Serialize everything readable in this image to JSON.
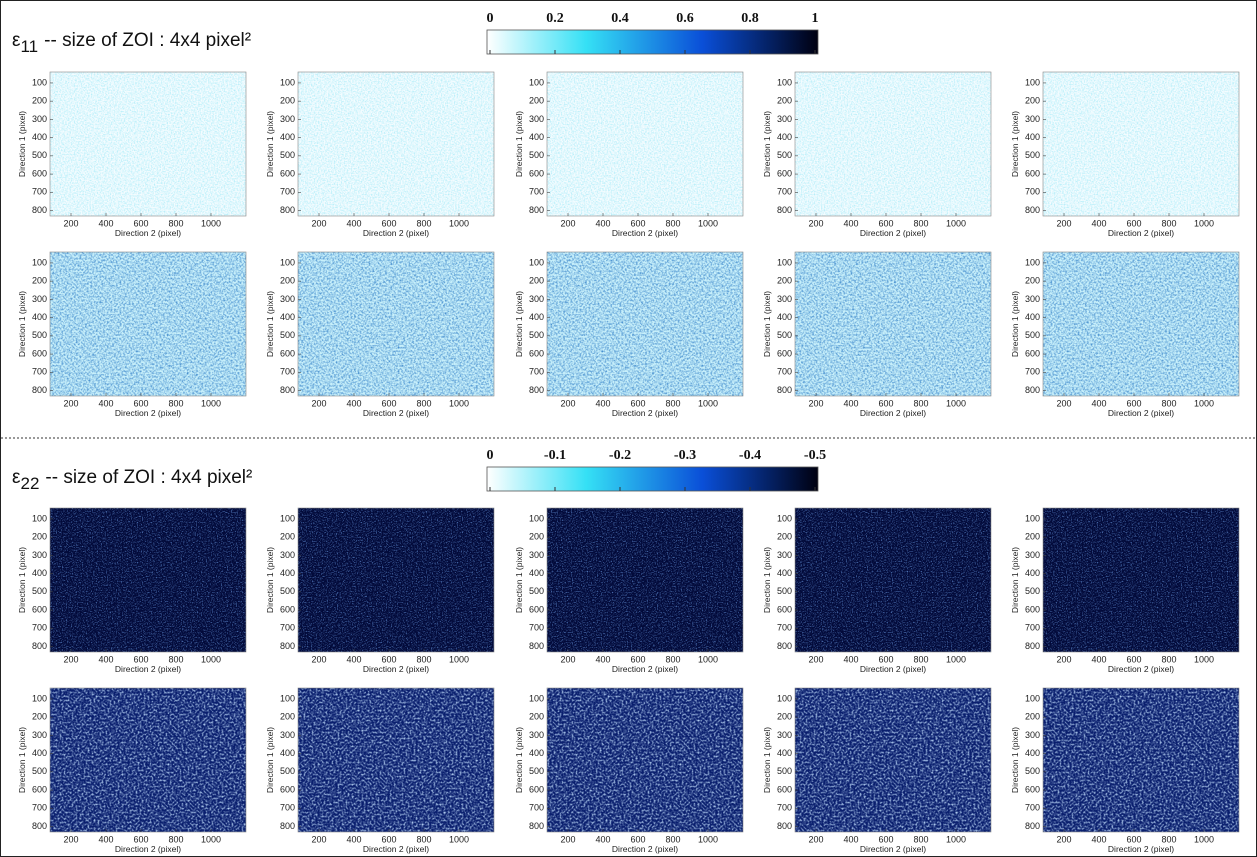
{
  "sections": [
    {
      "symbol": "ε",
      "subscript": "11",
      "title": "-- size of ZOI : 4x4 pixel²",
      "colorbar_ticks": [
        0,
        0.2,
        0.4,
        0.6,
        0.8,
        1
      ]
    },
    {
      "symbol": "ε",
      "subscript": "22",
      "title": "-- size of ZOI : 4x4 pixel²",
      "colorbar_ticks": [
        0,
        -0.1,
        -0.2,
        -0.3,
        -0.4,
        -0.5
      ]
    }
  ],
  "axes": {
    "xlabel": "Direction 2 (pixel)",
    "ylabel": "Direction 1 (pixel)",
    "xticks": [
      200,
      400,
      600,
      800,
      1000
    ],
    "yticks": [
      100,
      200,
      300,
      400,
      500,
      600,
      700,
      800
    ],
    "xlim": [
      80,
      1200
    ],
    "ylim": [
      40,
      830
    ]
  }
}
